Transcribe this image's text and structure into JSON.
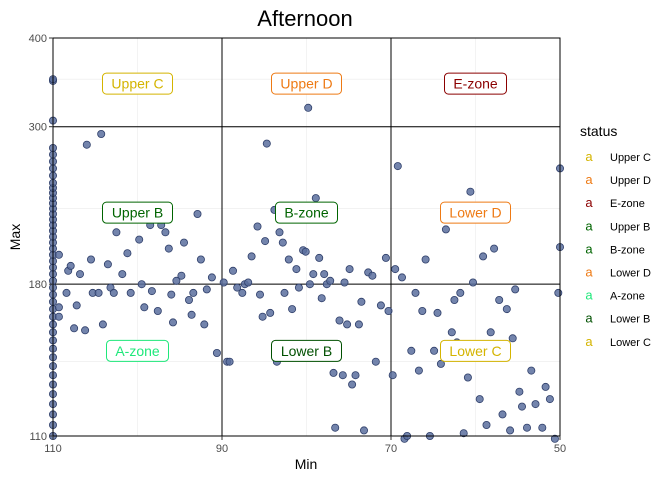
{
  "colors": {
    "point_fill": "#5b6e9e",
    "point_stroke": "#2f3f6a",
    "grid": "#ebebeb",
    "divider": "#000000",
    "axis_text": "#4d4d4d"
  },
  "chart_data": {
    "type": "scatter",
    "title": "Afternoon",
    "xlabel": "Min",
    "ylabel": "Max",
    "x_reversed": true,
    "xlim": [
      110,
      50
    ],
    "ylim": [
      110,
      400
    ],
    "y_scale": "log",
    "x_ticks": [
      "110",
      "90",
      "70",
      "50"
    ],
    "x_tick_values": [
      110,
      90,
      70,
      50
    ],
    "y_ticks": [
      "400",
      "300",
      "180",
      "110"
    ],
    "y_tick_values": [
      400,
      300,
      180,
      110
    ],
    "vertical_dividers": [
      90,
      70
    ],
    "horizontal_dividers": [
      300,
      180
    ],
    "zones": [
      {
        "label": "Upper C",
        "x": 100,
        "y": 345,
        "color": "#D4B400"
      },
      {
        "label": "Upper D",
        "x": 80,
        "y": 345,
        "color": "#EE7A14"
      },
      {
        "label": "E-zone",
        "x": 60,
        "y": 345,
        "color": "#8B0000"
      },
      {
        "label": "Upper B",
        "x": 100,
        "y": 227,
        "color": "#006400"
      },
      {
        "label": "B-zone",
        "x": 80,
        "y": 227,
        "color": "#006400"
      },
      {
        "label": "Lower D",
        "x": 60,
        "y": 227,
        "color": "#EE7A14"
      },
      {
        "label": "A-zone",
        "x": 100,
        "y": 145,
        "color": "#1EE87A"
      },
      {
        "label": "Lower B",
        "x": 80,
        "y": 145,
        "color": "#005000"
      },
      {
        "label": "Lower C",
        "x": 60,
        "y": 145,
        "color": "#D4B400"
      }
    ],
    "legend": {
      "title": "status",
      "placement": "right",
      "glyph": "a",
      "entries": [
        {
          "label": "Upper C",
          "color": "#D4B400"
        },
        {
          "label": "Upper D",
          "color": "#EE7A14"
        },
        {
          "label": "E-zone",
          "color": "#8B0000"
        },
        {
          "label": "Upper B",
          "color": "#006400"
        },
        {
          "label": "B-zone",
          "color": "#006400"
        },
        {
          "label": "Lower D",
          "color": "#EE7A14"
        },
        {
          "label": "A-zone",
          "color": "#1EE87A"
        },
        {
          "label": "Lower B",
          "color": "#005000"
        },
        {
          "label": "Lower C",
          "color": "#D4B400"
        }
      ]
    },
    "grid": true,
    "points": [
      [
        110,
        110
      ],
      [
        110,
        114
      ],
      [
        110,
        118
      ],
      [
        110,
        122
      ],
      [
        110,
        126
      ],
      [
        110,
        130
      ],
      [
        110,
        134
      ],
      [
        110,
        138
      ],
      [
        110,
        142
      ],
      [
        110,
        146
      ],
      [
        110,
        150
      ],
      [
        110,
        154
      ],
      [
        110,
        158
      ],
      [
        110,
        162
      ],
      [
        110,
        166
      ],
      [
        110,
        170
      ],
      [
        110,
        174
      ],
      [
        110,
        178
      ],
      [
        110,
        182
      ],
      [
        110,
        186
      ],
      [
        110,
        190
      ],
      [
        110,
        194
      ],
      [
        110,
        198
      ],
      [
        110,
        202
      ],
      [
        110,
        206
      ],
      [
        110,
        210
      ],
      [
        110,
        214
      ],
      [
        110,
        218
      ],
      [
        110,
        222
      ],
      [
        110,
        226
      ],
      [
        110,
        230
      ],
      [
        110,
        234
      ],
      [
        110,
        238
      ],
      [
        110,
        242
      ],
      [
        110,
        246
      ],
      [
        110,
        250
      ],
      [
        110,
        256
      ],
      [
        110,
        262
      ],
      [
        110,
        268
      ],
      [
        110,
        274
      ],
      [
        110,
        280
      ],
      [
        110,
        306
      ],
      [
        110,
        348
      ],
      [
        110,
        350
      ],
      [
        109.3,
        162
      ],
      [
        109.3,
        198
      ],
      [
        109.3,
        167
      ],
      [
        108.4,
        175
      ],
      [
        108.2,
        188
      ],
      [
        107.9,
        191
      ],
      [
        107.5,
        156
      ],
      [
        107.2,
        168
      ],
      [
        106.8,
        186
      ],
      [
        106.2,
        155
      ],
      [
        106.0,
        283
      ],
      [
        105.5,
        195
      ],
      [
        105.3,
        175
      ],
      [
        104.6,
        175
      ],
      [
        104.3,
        293
      ],
      [
        104.1,
        158
      ],
      [
        103.5,
        192
      ],
      [
        103.2,
        178
      ],
      [
        102.8,
        175
      ],
      [
        102.5,
        213
      ],
      [
        101.8,
        186
      ],
      [
        101.2,
        199
      ],
      [
        100.8,
        175
      ],
      [
        100.4,
        227
      ],
      [
        99.8,
        208
      ],
      [
        99.5,
        180
      ],
      [
        99.2,
        167
      ],
      [
        98.5,
        218
      ],
      [
        98.3,
        176
      ],
      [
        97.6,
        165
      ],
      [
        97.2,
        218
      ],
      [
        96.7,
        213
      ],
      [
        96.3,
        202
      ],
      [
        96.0,
        174
      ],
      [
        95.8,
        159
      ],
      [
        95.4,
        182
      ],
      [
        94.8,
        185
      ],
      [
        94.5,
        206
      ],
      [
        93.9,
        171
      ],
      [
        93.6,
        163
      ],
      [
        93.4,
        175
      ],
      [
        92.9,
        226
      ],
      [
        92.5,
        195
      ],
      [
        92.1,
        158
      ],
      [
        91.8,
        177
      ],
      [
        91.2,
        184
      ],
      [
        90.6,
        144
      ],
      [
        89.8,
        181
      ],
      [
        89.4,
        140
      ],
      [
        89.1,
        140
      ],
      [
        88.7,
        188
      ],
      [
        88.2,
        178
      ],
      [
        87.6,
        175
      ],
      [
        87.3,
        180
      ],
      [
        86.9,
        181
      ],
      [
        86.5,
        197
      ],
      [
        85.8,
        217
      ],
      [
        85.5,
        174
      ],
      [
        85.2,
        162
      ],
      [
        84.9,
        207
      ],
      [
        84.7,
        284
      ],
      [
        84.3,
        164
      ],
      [
        83.8,
        229
      ],
      [
        83.5,
        140
      ],
      [
        83.2,
        213
      ],
      [
        82.8,
        206
      ],
      [
        82.6,
        175
      ],
      [
        82.1,
        195
      ],
      [
        81.7,
        166
      ],
      [
        81.2,
        189
      ],
      [
        80.9,
        178
      ],
      [
        80.4,
        201
      ],
      [
        80.1,
        200
      ],
      [
        79.8,
        319
      ],
      [
        79.6,
        180
      ],
      [
        79.2,
        186
      ],
      [
        78.9,
        238
      ],
      [
        78.5,
        196
      ],
      [
        78.2,
        172
      ],
      [
        77.9,
        186
      ],
      [
        77.6,
        180
      ],
      [
        77.2,
        182
      ],
      [
        76.8,
        135
      ],
      [
        76.6,
        113
      ],
      [
        76.1,
        160
      ],
      [
        75.7,
        134
      ],
      [
        75.5,
        181
      ],
      [
        75.2,
        158
      ],
      [
        74.9,
        189
      ],
      [
        74.6,
        130
      ],
      [
        74.2,
        134
      ],
      [
        73.8,
        158
      ],
      [
        73.5,
        170
      ],
      [
        73.2,
        112
      ],
      [
        72.7,
        187
      ],
      [
        72.2,
        185
      ],
      [
        71.8,
        140
      ],
      [
        71.2,
        168
      ],
      [
        70.6,
        196
      ],
      [
        70.3,
        165
      ],
      [
        69.8,
        134
      ],
      [
        69.5,
        189
      ],
      [
        69.2,
        264
      ],
      [
        68.7,
        184
      ],
      [
        68.4,
        109
      ],
      [
        68.1,
        110
      ],
      [
        67.6,
        145
      ],
      [
        67.1,
        175
      ],
      [
        66.7,
        136
      ],
      [
        66.3,
        165
      ],
      [
        65.9,
        195
      ],
      [
        65.4,
        110
      ],
      [
        64.9,
        145
      ],
      [
        64.5,
        164
      ],
      [
        64.1,
        139
      ],
      [
        63.5,
        215
      ],
      [
        62.8,
        154
      ],
      [
        62.5,
        171
      ],
      [
        62.2,
        149
      ],
      [
        61.8,
        175
      ],
      [
        61.4,
        111
      ],
      [
        60.9,
        133
      ],
      [
        60.6,
        243
      ],
      [
        60.3,
        181
      ],
      [
        59.8,
        145
      ],
      [
        59.5,
        124
      ],
      [
        59.1,
        197
      ],
      [
        58.7,
        114
      ],
      [
        58.2,
        154
      ],
      [
        57.8,
        202
      ],
      [
        57.2,
        171
      ],
      [
        56.8,
        118
      ],
      [
        56.3,
        166
      ],
      [
        55.9,
        112
      ],
      [
        55.6,
        151
      ],
      [
        55.3,
        177
      ],
      [
        54.8,
        127
      ],
      [
        54.5,
        121
      ],
      [
        53.9,
        113
      ],
      [
        53.4,
        136
      ],
      [
        52.9,
        122
      ],
      [
        52.1,
        113
      ],
      [
        51.7,
        129
      ],
      [
        51.2,
        124
      ],
      [
        50.6,
        109
      ],
      [
        50.2,
        175
      ],
      [
        50.0,
        262
      ],
      [
        50.0,
        203
      ]
    ]
  }
}
